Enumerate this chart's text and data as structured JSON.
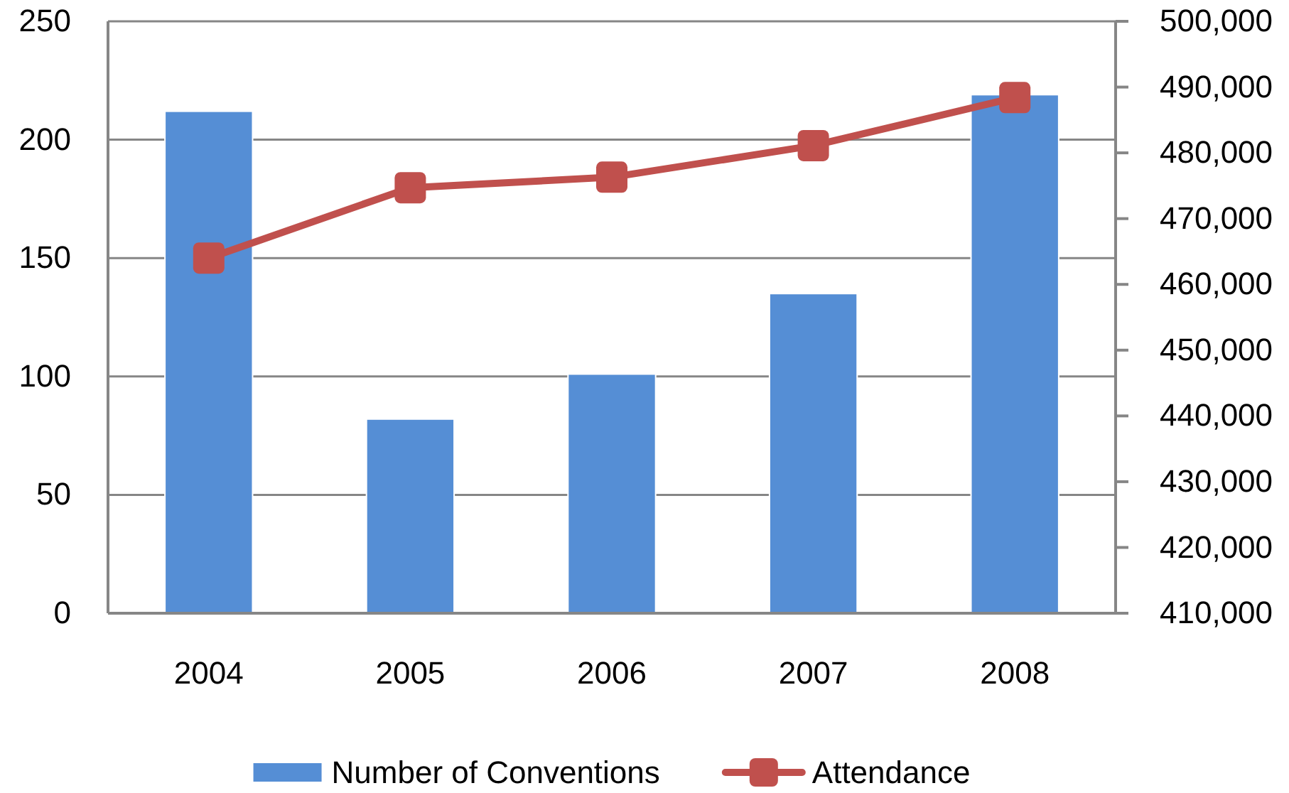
{
  "chart_data": {
    "type": "bar",
    "categories": [
      "2004",
      "2005",
      "2006",
      "2007",
      "2008"
    ],
    "series": [
      {
        "name": "Number of Conventions",
        "color": "#558ed5",
        "values": [
          212,
          82,
          101,
          135,
          219
        ]
      },
      {
        "name": "Attendance",
        "type": "line",
        "axis": "y2",
        "color": "#c0504d",
        "values": [
          464000,
          474700,
          476300,
          481100,
          488400
        ]
      }
    ],
    "ylim": [
      0,
      250
    ],
    "yticks": [
      0,
      50,
      100,
      150,
      200,
      250
    ],
    "y2lim": [
      410000,
      500000
    ],
    "y2ticks": [
      {
        "value": 410000,
        "label": "410,000"
      },
      {
        "value": 420000,
        "label": "420,000"
      },
      {
        "value": 430000,
        "label": "430,000"
      },
      {
        "value": 440000,
        "label": "440,000"
      },
      {
        "value": 450000,
        "label": "450,000"
      },
      {
        "value": 460000,
        "label": "460,000"
      },
      {
        "value": 470000,
        "label": "470,000"
      },
      {
        "value": 480000,
        "label": "480,000"
      },
      {
        "value": 490000,
        "label": "490,000"
      },
      {
        "value": 500000,
        "label": "500,000"
      }
    ],
    "grid": "y",
    "legend": "bottom",
    "marker": "square"
  }
}
